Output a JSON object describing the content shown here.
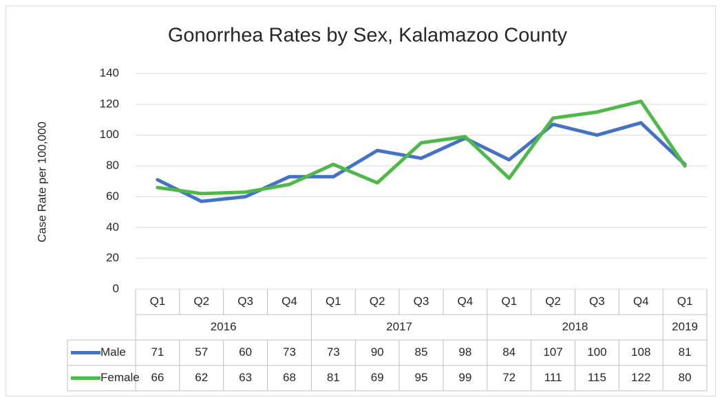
{
  "chart_data": {
    "type": "line",
    "title": "Gonorrhea Rates by Sex, Kalamazoo County",
    "y_label": "Case Rate per 100,000",
    "groups": [
      {
        "label": "2016",
        "categories": [
          "Q1",
          "Q2",
          "Q3",
          "Q4"
        ]
      },
      {
        "label": "2017",
        "categories": [
          "Q1",
          "Q2",
          "Q3",
          "Q4"
        ]
      },
      {
        "label": "2018",
        "categories": [
          "Q1",
          "Q2",
          "Q3",
          "Q4"
        ]
      },
      {
        "label": "2019",
        "categories": [
          "Q1"
        ]
      }
    ],
    "series": [
      {
        "name": "Male",
        "color": "#4472c4",
        "values": [
          71,
          57,
          60,
          73,
          73,
          90,
          85,
          98,
          84,
          107,
          100,
          108,
          81
        ]
      },
      {
        "name": "Female",
        "color": "#4eb848",
        "values": [
          66,
          62,
          63,
          68,
          81,
          69,
          95,
          99,
          72,
          111,
          115,
          122,
          80
        ]
      }
    ],
    "ylim": [
      0,
      140
    ],
    "yticks": [
      0,
      20,
      40,
      60,
      80,
      100,
      120,
      140
    ],
    "grid": true,
    "data_table": true
  }
}
